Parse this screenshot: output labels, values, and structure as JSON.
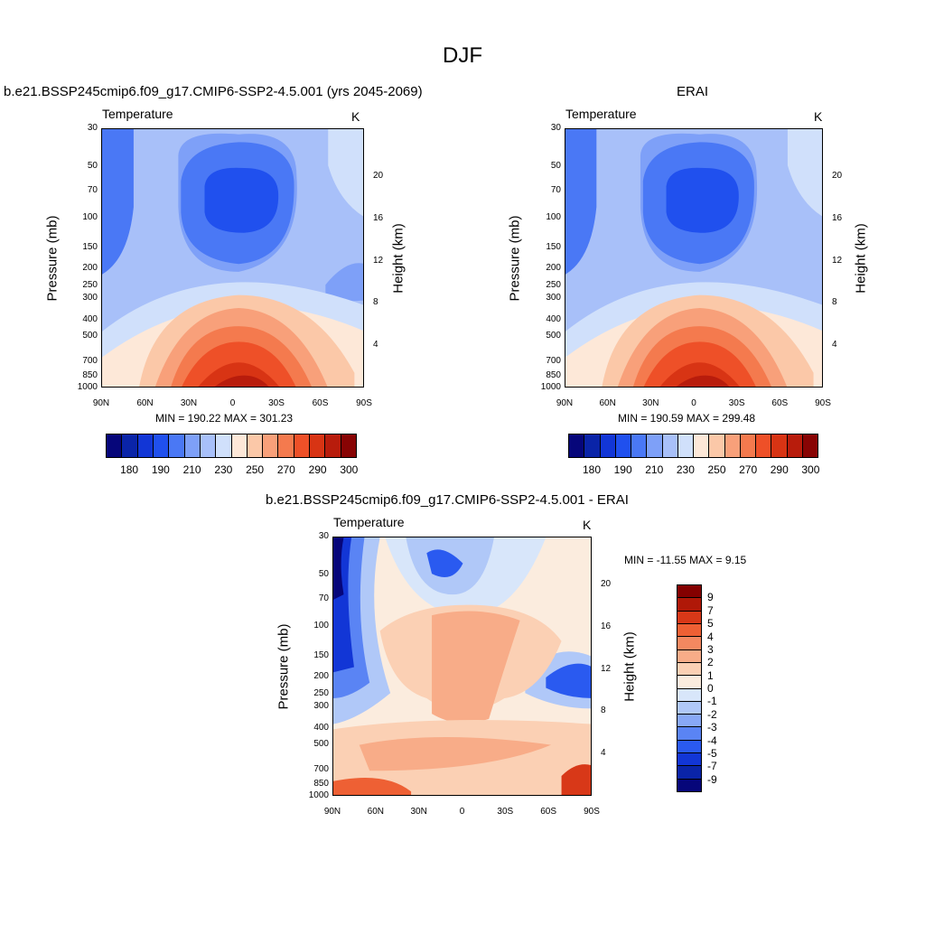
{
  "figure": {
    "title": "DJF"
  },
  "colors": {
    "temp_palette": [
      "#06067a",
      "#0a24a8",
      "#1236d6",
      "#2050ee",
      "#4a78f5",
      "#7ea0f8",
      "#a8c0f9",
      "#d0e0fb",
      "#fde8d8",
      "#fbc8a8",
      "#f8a07a",
      "#f47a4e",
      "#ee5028",
      "#d83414",
      "#b81c0c",
      "#880404"
    ],
    "diff_palette": [
      "#06067a",
      "#0a24a8",
      "#1236d6",
      "#2a5af0",
      "#5a84f4",
      "#88a8f6",
      "#b0c8f8",
      "#d8e6fa",
      "#fbecde",
      "#fbd0b4",
      "#f8ac88",
      "#f48860",
      "#ee6034",
      "#d83818",
      "#b01808",
      "#840000"
    ]
  },
  "panels": {
    "left": {
      "title": "b.e21.BSSP245cmip6.f09_g17.CMIP6-SSP2-4.5.001 (yrs 2045-2069)",
      "variable": "Temperature",
      "units": "K",
      "stats": "MIN = 190.22  MAX = 301.23"
    },
    "right": {
      "title": "ERAI",
      "variable": "Temperature",
      "units": "K",
      "stats": "MIN = 190.59  MAX = 299.48"
    },
    "diff": {
      "title": "b.e21.BSSP245cmip6.f09_g17.CMIP6-SSP2-4.5.001 - ERAI",
      "variable": "Temperature",
      "units": "K",
      "stats": "MIN = -11.55  MAX =   9.15"
    }
  },
  "axes": {
    "ylabel": "Pressure (mb)",
    "y2label": "Height (km)",
    "pressure_ticks": [
      "30",
      "50",
      "70",
      "100",
      "150",
      "200",
      "250",
      "300",
      "400",
      "500",
      "700",
      "850",
      "1000"
    ],
    "height_ticks": [
      "20",
      "16",
      "12",
      "8",
      "4"
    ],
    "lat_ticks": [
      "90N",
      "60N",
      "30N",
      "0",
      "30S",
      "60S",
      "90S"
    ]
  },
  "colorbars": {
    "temp_labels": [
      "180",
      "190",
      "210",
      "230",
      "250",
      "270",
      "290",
      "300"
    ],
    "diff_labels": [
      "9",
      "7",
      "5",
      "4",
      "3",
      "2",
      "1",
      "0",
      "-1",
      "-2",
      "-3",
      "-4",
      "-5",
      "-7",
      "-9"
    ]
  },
  "chart_data": [
    {
      "type": "heatmap",
      "title": "b.e21.BSSP245cmip6.f09_g17.CMIP6-SSP2-4.5.001 (yrs 2045-2069)",
      "variable": "Temperature",
      "units": "K",
      "xlabel": "",
      "ylabel": "Pressure (mb)",
      "y2label": "Height (km)",
      "x_ticks": [
        "90N",
        "60N",
        "30N",
        "0",
        "30S",
        "60S",
        "90S"
      ],
      "y_ticks_pressure_mb": [
        30,
        50,
        70,
        100,
        150,
        200,
        250,
        300,
        400,
        500,
        700,
        850,
        1000
      ],
      "y2_ticks_height_km": [
        20,
        16,
        12,
        8,
        4
      ],
      "y_scale": "log",
      "contour_levels": [
        175,
        180,
        185,
        190,
        200,
        210,
        220,
        230,
        240,
        250,
        260,
        270,
        280,
        290,
        295,
        300
      ],
      "min": 190.22,
      "max": 301.23
    },
    {
      "type": "heatmap",
      "title": "ERAI",
      "variable": "Temperature",
      "units": "K",
      "xlabel": "",
      "ylabel": "Pressure (mb)",
      "y2label": "Height (km)",
      "x_ticks": [
        "90N",
        "60N",
        "30N",
        "0",
        "30S",
        "60S",
        "90S"
      ],
      "y_ticks_pressure_mb": [
        30,
        50,
        70,
        100,
        150,
        200,
        250,
        300,
        400,
        500,
        700,
        850,
        1000
      ],
      "y2_ticks_height_km": [
        20,
        16,
        12,
        8,
        4
      ],
      "y_scale": "log",
      "contour_levels": [
        175,
        180,
        185,
        190,
        200,
        210,
        220,
        230,
        240,
        250,
        260,
        270,
        280,
        290,
        295,
        300
      ],
      "min": 190.59,
      "max": 299.48
    },
    {
      "type": "heatmap",
      "title": "b.e21.BSSP245cmip6.f09_g17.CMIP6-SSP2-4.5.001 - ERAI",
      "variable": "Temperature",
      "units": "K",
      "xlabel": "",
      "ylabel": "Pressure (mb)",
      "y2label": "Height (km)",
      "x_ticks": [
        "90N",
        "60N",
        "30N",
        "0",
        "30S",
        "60S",
        "90S"
      ],
      "y_ticks_pressure_mb": [
        30,
        50,
        70,
        100,
        150,
        200,
        250,
        300,
        400,
        500,
        700,
        850,
        1000
      ],
      "y2_ticks_height_km": [
        20,
        16,
        12,
        8,
        4
      ],
      "y_scale": "log",
      "contour_levels": [
        -9,
        -7,
        -5,
        -4,
        -3,
        -2,
        -1,
        0,
        1,
        2,
        3,
        4,
        5,
        7,
        9
      ],
      "min": -11.55,
      "max": 9.15
    }
  ]
}
